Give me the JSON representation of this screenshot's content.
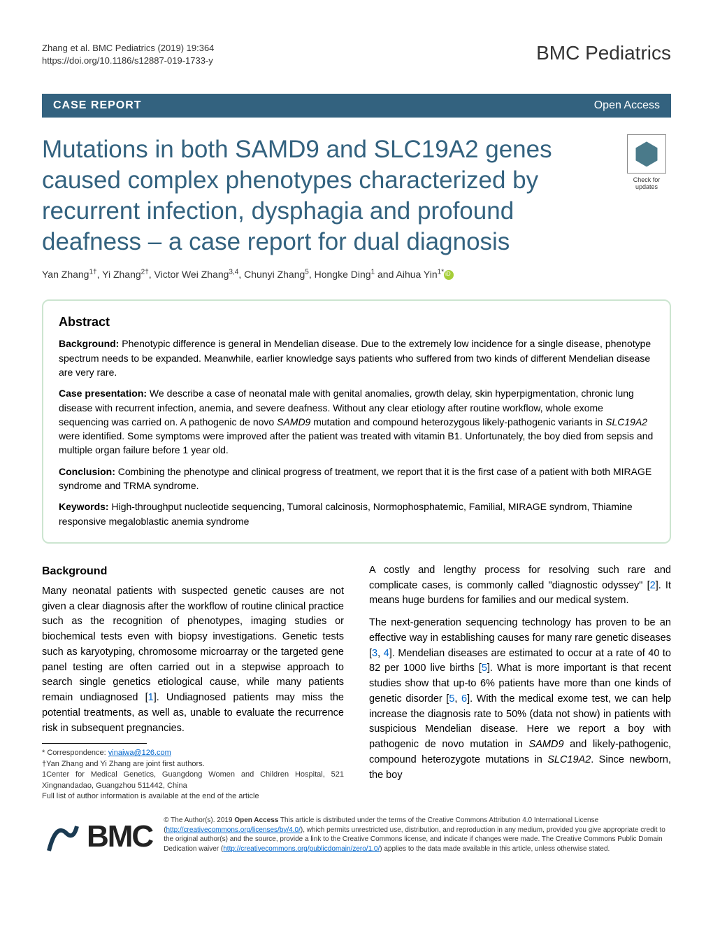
{
  "meta": {
    "citation": "Zhang et al. BMC Pediatrics        (2019) 19:364",
    "doi": "https://doi.org/10.1186/s12887-019-1733-y",
    "journal": "BMC Pediatrics"
  },
  "article_type": {
    "label": "CASE REPORT",
    "access": "Open Access"
  },
  "check_updates": {
    "line1": "Check for",
    "line2": "updates"
  },
  "title": "Mutations in both SAMD9 and SLC19A2 genes caused complex phenotypes characterized by recurrent infection, dysphagia and profound deafness – a case report for dual diagnosis",
  "authors_html": "Yan Zhang<sup>1†</sup>, Yi Zhang<sup>2†</sup>, Victor Wei Zhang<sup>3,4</sup>, Chunyi Zhang<sup>5</sup>, Hongke Ding<sup>1</sup> and Aihua Yin<sup>1*</sup>",
  "abstract": {
    "heading": "Abstract",
    "background_label": "Background:",
    "background_text": " Phenotypic difference is general in Mendelian disease. Due to the extremely low incidence for a single disease, phenotype spectrum needs to be expanded. Meanwhile, earlier knowledge says patients who suffered from two kinds of different Mendelian disease are very rare.",
    "case_label": "Case presentation:",
    "case_text": " We describe a case of neonatal male with genital anomalies, growth delay, skin hyperpigmentation, chronic lung disease with recurrent infection, anemia, and severe deafness. Without any clear etiology after routine workflow, whole exome sequencing was carried on. A pathogenic de novo SAMD9 mutation and compound heterozygous likely-pathogenic variants in SLC19A2 were identified. Some symptoms were improved after the patient was treated with vitamin B1. Unfortunately, the boy died from sepsis and multiple organ failure before 1 year old.",
    "conclusion_label": "Conclusion:",
    "conclusion_text": " Combining the phenotype and clinical progress of treatment, we report that it is the first case of a patient with both MIRAGE syndrome and TRMA syndrome.",
    "keywords_label": "Keywords:",
    "keywords_text": " High-throughput nucleotide sequencing, Tumoral calcinosis, Normophosphatemic, Familial, MIRAGE syndrom, Thiamine responsive megaloblastic anemia syndrome"
  },
  "body": {
    "background_heading": "Background",
    "left_p1": "Many neonatal patients with suspected genetic causes are not given a clear diagnosis after the workflow of routine clinical practice such as the recognition of phenotypes, imaging studies or biochemical tests even with biopsy investigations. Genetic tests such as karyotyping, chromosome microarray or the targeted gene panel testing are often carried out in a stepwise approach to search single genetics etiological cause, while many patients remain undiagnosed [1]. Undiagnosed patients may miss the potential treatments, as well as, unable to evaluate the recurrence risk in subsequent pregnancies.",
    "right_p1": "A costly and lengthy process for resolving such rare and complicate cases, is commonly called \"diagnostic odyssey\" [2]. It means huge burdens for families and our medical system.",
    "right_p2": "The next-generation sequencing technology has proven to be an effective way in establishing causes for many rare genetic diseases [3, 4]. Mendelian diseases are estimated to occur at a rate of 40 to 82 per 1000 live births [5]. What is more important is that recent studies show that up-to 6% patients have more than one kinds of genetic disorder [5, 6]. With the medical exome test, we can help increase the diagnosis rate to 50% (data not show) in patients with suspicious Mendelian disease. Here we report a boy with pathogenic de novo mutation in SAMD9 and likely-pathogenic, compound heterozygote mutations in SLC19A2. Since newborn, the boy"
  },
  "correspondence": {
    "label": "* Correspondence:",
    "email": "yinaiwa@126.com",
    "note": "†Yan Zhang and Yi Zhang are joint first authors.",
    "affil": "1Center for Medical Genetics, Guangdong Women and Children Hospital, 521 Xingnandadao, Guangzhou 511442, China",
    "full_list": "Full list of author information is available at the end of the article"
  },
  "bmc": {
    "text": "BMC"
  },
  "license": {
    "text_pre": "© The Author(s). 2019 ",
    "open_access": "Open Access",
    "text_mid1": " This article is distributed under the terms of the Creative Commons Attribution 4.0 International License (",
    "url1": "http://creativecommons.org/licenses/by/4.0/",
    "text_mid2": "), which permits unrestricted use, distribution, and reproduction in any medium, provided you give appropriate credit to the original author(s) and the source, provide a link to the Creative Commons license, and indicate if changes were made. The Creative Commons Public Domain Dedication waiver (",
    "url2": "http://creativecommons.org/publicdomain/zero/1.0/",
    "text_end": ") applies to the data made available in this article, unless otherwise stated."
  },
  "colors": {
    "header_bg": "#33627f",
    "title_color": "#33627f",
    "abstract_border": "#cce5d0",
    "link_color": "#0066cc",
    "orcid_bg": "#a6ce39"
  }
}
